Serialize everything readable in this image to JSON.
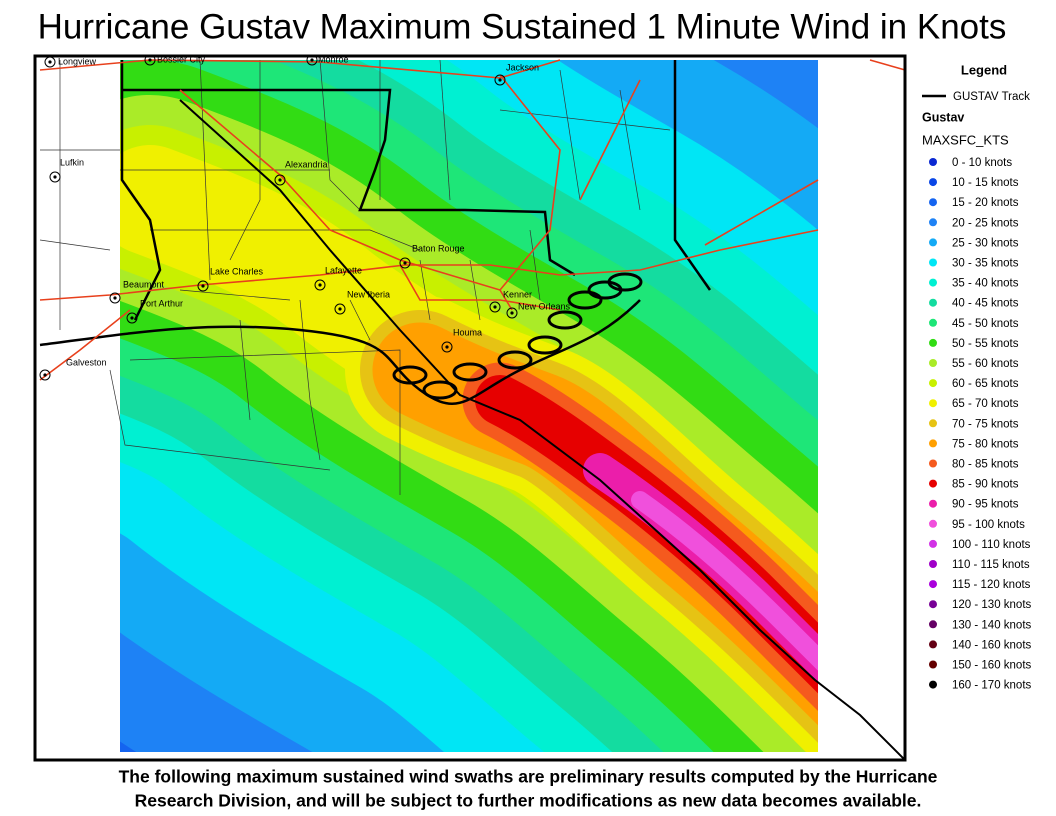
{
  "header": {
    "title": "Hurricane Gustav Maximum Sustained 1 Minute Wind in Knots"
  },
  "cities": [
    "Longview",
    "Bossier City",
    "Monroe",
    "Jackson",
    "Lufkin",
    "Alexandria",
    "Baton Rouge",
    "Lake Charles",
    "Lafayette",
    "Beaumont",
    "Port Arthur",
    "New Iberia",
    "Kenner",
    "New Orleans",
    "Houma",
    "Galveston"
  ],
  "legend": {
    "title": "Legend",
    "track_label": "GUSTAV Track",
    "layer_name": "Gustav",
    "field_name": "MAXSFC_KTS",
    "items": [
      {
        "label": "0 - 10 knots",
        "color": "#0a28d2"
      },
      {
        "label": "10 - 15 knots",
        "color": "#0a46e6"
      },
      {
        "label": "15 - 20 knots",
        "color": "#1464f0"
      },
      {
        "label": "20 - 25 knots",
        "color": "#1e82f5"
      },
      {
        "label": "25 - 30 knots",
        "color": "#14aaf5"
      },
      {
        "label": "30 - 35 knots",
        "color": "#00e6f5"
      },
      {
        "label": "35 - 40 knots",
        "color": "#00f0d2"
      },
      {
        "label": "40 - 45 knots",
        "color": "#14dca0"
      },
      {
        "label": "45 - 50 knots",
        "color": "#1ee678"
      },
      {
        "label": "50 - 55 knots",
        "color": "#32dc14"
      },
      {
        "label": "55 - 60 knots",
        "color": "#aaeb28"
      },
      {
        "label": "60 - 65 knots",
        "color": "#c8f000"
      },
      {
        "label": "65 - 70 knots",
        "color": "#f0f000"
      },
      {
        "label": "70 - 75 knots",
        "color": "#e6c314"
      },
      {
        "label": "75 - 80 knots",
        "color": "#ffa000"
      },
      {
        "label": "80 - 85 knots",
        "color": "#f55a1e"
      },
      {
        "label": "85 - 90 knots",
        "color": "#e60000"
      },
      {
        "label": "90 - 95 knots",
        "color": "#eb1eaa"
      },
      {
        "label": "95 - 100 knots",
        "color": "#f050dc"
      },
      {
        "label": "100 - 110 knots",
        "color": "#d232e6"
      },
      {
        "label": "110 - 115 knots",
        "color": "#a000c8"
      },
      {
        "label": "115 - 120 knots",
        "color": "#aa00dc"
      },
      {
        "label": "120 - 130 knots",
        "color": "#780096"
      },
      {
        "label": "130 - 140 knots",
        "color": "#640064"
      },
      {
        "label": "140 - 160 knots",
        "color": "#640014"
      },
      {
        "label": "150 - 160 knots",
        "color": "#640000"
      },
      {
        "label": "160 - 170 knots",
        "color": "#000000"
      }
    ]
  },
  "footer": {
    "lines": [
      "The following maximum sustained wind swaths are preliminary results computed by the Hurricane",
      "Research Division, and will be subject to further modifications as new data becomes available."
    ]
  }
}
